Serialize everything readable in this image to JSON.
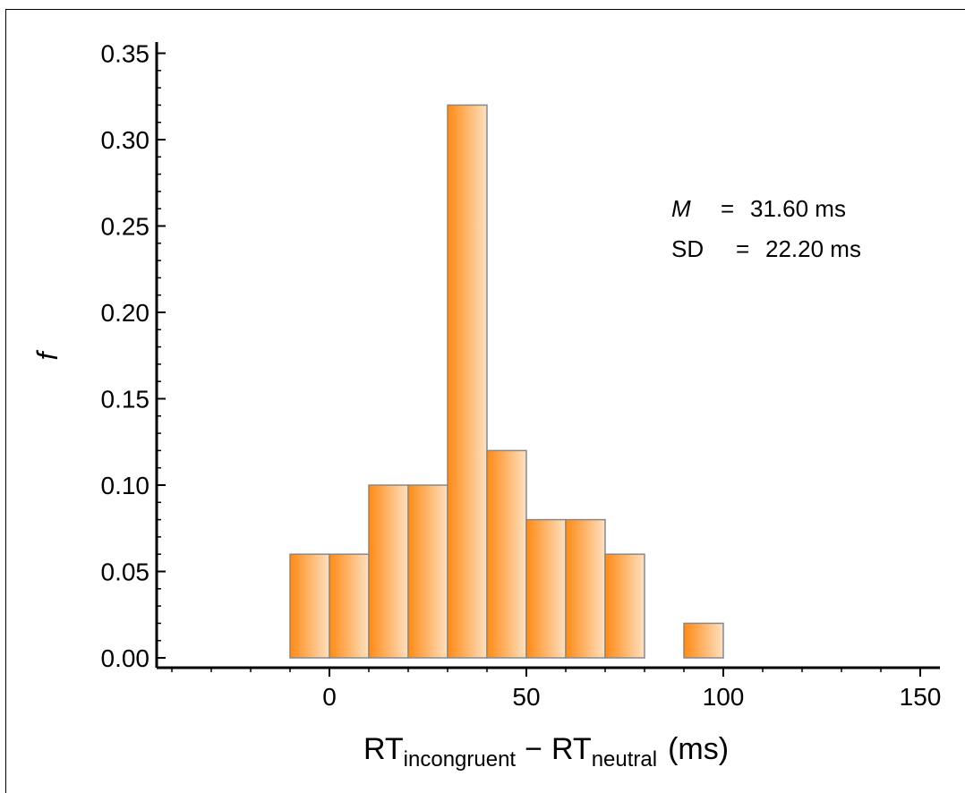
{
  "chart_data": {
    "type": "bar",
    "bin_width": 10,
    "x": [
      -5,
      5,
      15,
      25,
      35,
      45,
      55,
      65,
      75,
      95
    ],
    "bin_edges": [
      [
        -10,
        0
      ],
      [
        0,
        10
      ],
      [
        10,
        20
      ],
      [
        20,
        30
      ],
      [
        30,
        40
      ],
      [
        40,
        50
      ],
      [
        50,
        60
      ],
      [
        60,
        70
      ],
      [
        70,
        80
      ],
      [
        90,
        100
      ]
    ],
    "values": [
      0.06,
      0.06,
      0.1,
      0.1,
      0.32,
      0.12,
      0.08,
      0.08,
      0.06,
      0.02
    ],
    "ylabel": "f",
    "xlabel": {
      "main": "RT",
      "sub1": "incongruent",
      "minus": "−",
      "main2": "RT",
      "sub2": "neutral",
      "unit": "(ms)"
    },
    "xlim": [
      -45,
      150
    ],
    "ylim": [
      0,
      0.35
    ],
    "xticks": [
      0,
      50,
      100,
      150
    ],
    "xtick_labels": [
      "0",
      "50",
      "100",
      "150"
    ],
    "yticks": [
      0,
      0.05,
      0.1,
      0.15,
      0.2,
      0.25,
      0.3,
      0.35
    ],
    "ytick_labels": [
      "0.00",
      "0.05",
      "0.10",
      "0.15",
      "0.20",
      "0.25",
      "0.30",
      "0.35"
    ],
    "annotations": [
      {
        "label": "M",
        "eq": "=",
        "value": "31.60 ms"
      },
      {
        "label": "SD",
        "eq": "=",
        "value": "22.20 ms"
      }
    ],
    "colors": {
      "bar_dark": "#ff8a14",
      "bar_light": "#ffe0c0",
      "bar_stroke": "#888888",
      "axis": "#000000"
    },
    "grid": false
  }
}
